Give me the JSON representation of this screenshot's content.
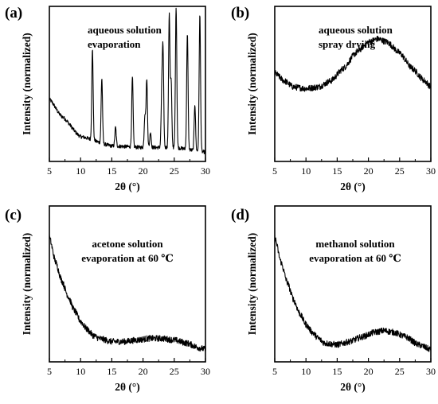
{
  "chart_data": [
    {
      "panel_label": "(a)",
      "type": "line",
      "annotation": [
        "aqueous solution",
        "evaporation"
      ],
      "xlabel": "2θ (°)",
      "ylabel": "Intensity (normalized)",
      "xlim": [
        5,
        30
      ],
      "xticks": [
        "5",
        "10",
        "15",
        "20",
        "25",
        "30"
      ],
      "ylim": [
        0,
        1
      ],
      "baseline": [
        [
          5,
          0.4
        ],
        [
          7,
          0.29
        ],
        [
          10,
          0.16
        ],
        [
          15,
          0.1
        ],
        [
          20,
          0.09
        ],
        [
          25,
          0.09
        ],
        [
          30,
          0.06
        ]
      ],
      "peaks": [
        {
          "x": 11.9,
          "height": 0.58
        },
        {
          "x": 13.4,
          "height": 0.42
        },
        {
          "x": 15.6,
          "height": 0.12
        },
        {
          "x": 18.3,
          "height": 0.45
        },
        {
          "x": 20.3,
          "height": 0.21
        },
        {
          "x": 20.6,
          "height": 0.44
        },
        {
          "x": 21.2,
          "height": 0.1
        },
        {
          "x": 23.0,
          "height": 0.32
        },
        {
          "x": 23.2,
          "height": 0.6
        },
        {
          "x": 24.2,
          "height": 0.86
        },
        {
          "x": 24.5,
          "height": 0.42
        },
        {
          "x": 25.3,
          "height": 0.91
        },
        {
          "x": 27.1,
          "height": 0.75
        },
        {
          "x": 28.3,
          "height": 0.3
        },
        {
          "x": 29.1,
          "height": 0.88
        }
      ]
    },
    {
      "panel_label": "(b)",
      "type": "line",
      "annotation": [
        "aqueous solution",
        "spray drying"
      ],
      "xlabel": "2θ (°)",
      "ylabel": "Intensity (normalized)",
      "xlim": [
        5,
        30
      ],
      "xticks": [
        "5",
        "10",
        "15",
        "20",
        "25",
        "30"
      ],
      "ylim": [
        0,
        1
      ],
      "baseline": [
        [
          5,
          0.57
        ],
        [
          6.5,
          0.52
        ],
        [
          8,
          0.48
        ],
        [
          10,
          0.47
        ],
        [
          12,
          0.48
        ],
        [
          14,
          0.52
        ],
        [
          16,
          0.6
        ],
        [
          18,
          0.7
        ],
        [
          20,
          0.77
        ],
        [
          21.5,
          0.79
        ],
        [
          23,
          0.77
        ],
        [
          25,
          0.7
        ],
        [
          27,
          0.6
        ],
        [
          29,
          0.52
        ],
        [
          30,
          0.48
        ]
      ]
    },
    {
      "panel_label": "(c)",
      "type": "line",
      "annotation": [
        "acetone solution",
        "evaporation at 60  ℃"
      ],
      "xlabel": "2θ (°)",
      "ylabel": "Intensity (normalized)",
      "xlim": [
        5,
        30
      ],
      "xticks": [
        "5",
        "10",
        "15",
        "20",
        "25",
        "30"
      ],
      "ylim": [
        0,
        1
      ],
      "baseline": [
        [
          5,
          0.8
        ],
        [
          6,
          0.64
        ],
        [
          7,
          0.52
        ],
        [
          8,
          0.42
        ],
        [
          9,
          0.33
        ],
        [
          10,
          0.26
        ],
        [
          11,
          0.21
        ],
        [
          12,
          0.17
        ],
        [
          13,
          0.15
        ],
        [
          15,
          0.13
        ],
        [
          17,
          0.13
        ],
        [
          19,
          0.14
        ],
        [
          21,
          0.15
        ],
        [
          23,
          0.15
        ],
        [
          25,
          0.14
        ],
        [
          27,
          0.12
        ],
        [
          29,
          0.09
        ],
        [
          30,
          0.08
        ]
      ]
    },
    {
      "panel_label": "(d)",
      "type": "line",
      "annotation": [
        "methanol solution",
        "evaporation at 60  ℃"
      ],
      "xlabel": "2θ (°)",
      "ylabel": "Intensity (normalized)",
      "xlim": [
        5,
        30
      ],
      "xticks": [
        "5",
        "10",
        "15",
        "20",
        "25",
        "30"
      ],
      "ylim": [
        0,
        1
      ],
      "baseline": [
        [
          5,
          0.8
        ],
        [
          6,
          0.64
        ],
        [
          7,
          0.51
        ],
        [
          8,
          0.4
        ],
        [
          9,
          0.31
        ],
        [
          10,
          0.24
        ],
        [
          11,
          0.19
        ],
        [
          12,
          0.15
        ],
        [
          13,
          0.12
        ],
        [
          15,
          0.11
        ],
        [
          17,
          0.13
        ],
        [
          19,
          0.16
        ],
        [
          21,
          0.19
        ],
        [
          22.5,
          0.2
        ],
        [
          24,
          0.19
        ],
        [
          26,
          0.16
        ],
        [
          28,
          0.11
        ],
        [
          30,
          0.08
        ]
      ]
    }
  ]
}
